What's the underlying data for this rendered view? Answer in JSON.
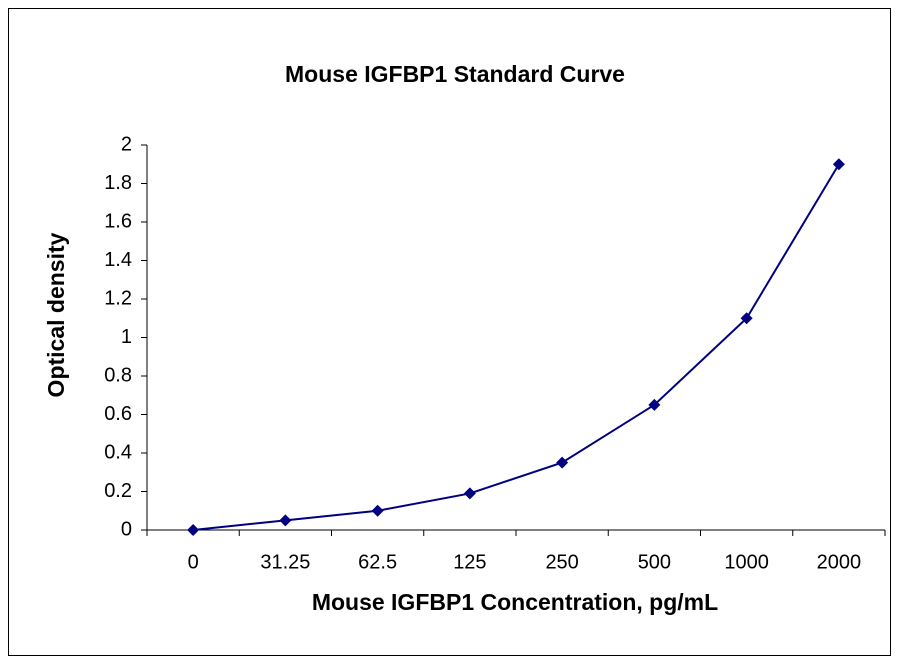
{
  "chart_data": {
    "type": "line",
    "title": "Mouse IGFBP1 Standard Curve",
    "x_label": "Mouse IGFBP1 Concentration, pg/mL",
    "y_label": "Optical density",
    "categories": [
      "0",
      "31.25",
      "62.5",
      "125",
      "250",
      "500",
      "1000",
      "2000"
    ],
    "series": [
      {
        "name": "Optical density",
        "color": "#000080",
        "values": [
          0,
          0.05,
          0.1,
          0.19,
          0.35,
          0.65,
          1.1,
          1.9
        ]
      }
    ],
    "ylim": [
      0,
      2
    ],
    "yticks": [
      0,
      0.2,
      0.4,
      0.6,
      0.8,
      1,
      1.2,
      1.4,
      1.6,
      1.8,
      2
    ],
    "grid": false
  }
}
